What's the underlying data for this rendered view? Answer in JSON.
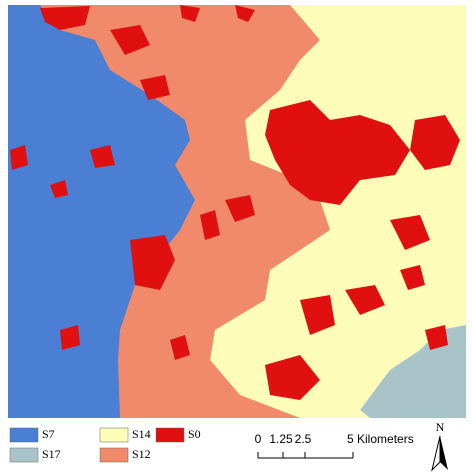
{
  "legend": [
    {
      "label": "S7",
      "color": "#4a7fd4"
    },
    {
      "label": "S14",
      "color": "#fdfcb8"
    },
    {
      "label": "S0",
      "color": "#e01010"
    },
    {
      "label": "S17",
      "color": "#a9c4c9"
    },
    {
      "label": "S12",
      "color": "#f08a6a"
    }
  ],
  "scale_bar": {
    "labels": [
      "0",
      "1.25",
      "2.5",
      "5 Kilometers"
    ]
  },
  "north_arrow": {
    "label": "N"
  }
}
